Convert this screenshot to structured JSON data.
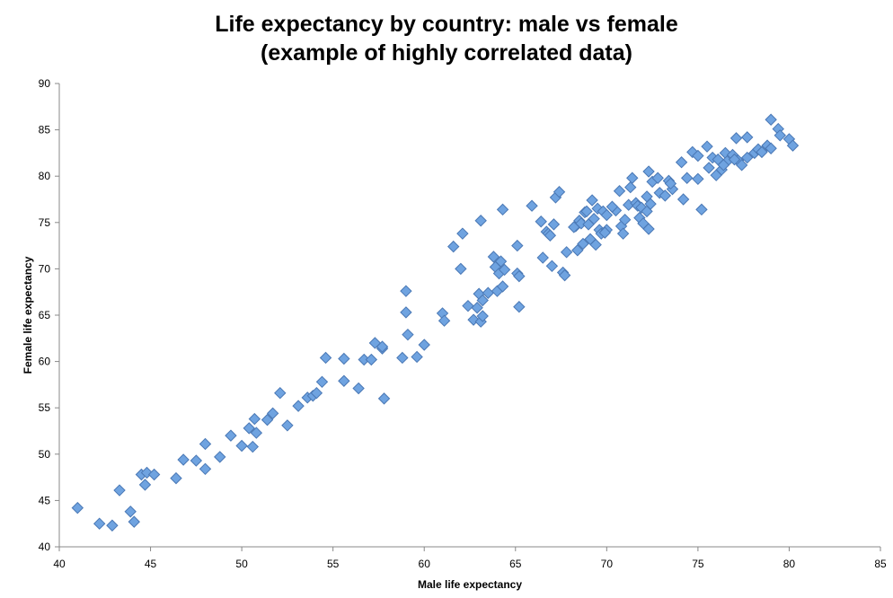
{
  "chart_data": {
    "type": "scatter",
    "title_line1": "Life expectancy by country: male vs female",
    "title_line2": "(example of highly correlated data)",
    "xlabel": "Male life expectancy",
    "ylabel": "Female life expectancy",
    "xlim": [
      40,
      85
    ],
    "ylim": [
      40,
      90
    ],
    "xticks": [
      "40",
      "45",
      "50",
      "55",
      "60",
      "65",
      "70",
      "75",
      "80",
      "85"
    ],
    "yticks": [
      "40",
      "45",
      "50",
      "55",
      "60",
      "65",
      "70",
      "75",
      "80",
      "85",
      "90"
    ],
    "grid": false,
    "legend": "none",
    "marker": "diamond",
    "marker_color": "#6fa3e0",
    "marker_edge_color": "#4a78b5",
    "points": [
      [
        41.0,
        44.2
      ],
      [
        42.2,
        42.5
      ],
      [
        42.9,
        42.3
      ],
      [
        43.3,
        46.1
      ],
      [
        43.9,
        43.8
      ],
      [
        44.1,
        42.7
      ],
      [
        44.5,
        47.8
      ],
      [
        44.7,
        46.7
      ],
      [
        44.8,
        48.0
      ],
      [
        45.2,
        47.8
      ],
      [
        46.4,
        47.4
      ],
      [
        46.8,
        49.4
      ],
      [
        47.5,
        49.3
      ],
      [
        48.0,
        51.1
      ],
      [
        48.0,
        48.4
      ],
      [
        48.8,
        49.7
      ],
      [
        49.4,
        52.0
      ],
      [
        50.0,
        50.9
      ],
      [
        50.4,
        52.8
      ],
      [
        50.6,
        50.8
      ],
      [
        50.7,
        53.8
      ],
      [
        50.8,
        52.3
      ],
      [
        51.4,
        53.7
      ],
      [
        51.7,
        54.4
      ],
      [
        52.1,
        56.6
      ],
      [
        52.5,
        53.1
      ],
      [
        53.1,
        55.2
      ],
      [
        53.6,
        56.1
      ],
      [
        53.9,
        56.3
      ],
      [
        54.1,
        56.6
      ],
      [
        54.4,
        57.8
      ],
      [
        54.6,
        60.4
      ],
      [
        55.6,
        60.3
      ],
      [
        55.6,
        57.9
      ],
      [
        56.4,
        57.1
      ],
      [
        56.7,
        60.2
      ],
      [
        57.1,
        60.2
      ],
      [
        57.3,
        62.0
      ],
      [
        57.7,
        61.4
      ],
      [
        57.7,
        61.6
      ],
      [
        57.8,
        56.0
      ],
      [
        58.8,
        60.4
      ],
      [
        59.0,
        65.3
      ],
      [
        59.0,
        67.6
      ],
      [
        59.1,
        62.9
      ],
      [
        59.6,
        60.5
      ],
      [
        60.0,
        61.8
      ],
      [
        61.0,
        65.2
      ],
      [
        61.1,
        64.4
      ],
      [
        61.6,
        72.4
      ],
      [
        62.0,
        70.0
      ],
      [
        62.1,
        73.8
      ],
      [
        62.4,
        66.0
      ],
      [
        62.7,
        64.5
      ],
      [
        62.9,
        65.8
      ],
      [
        63.0,
        67.3
      ],
      [
        63.1,
        75.2
      ],
      [
        63.1,
        64.3
      ],
      [
        63.2,
        64.9
      ],
      [
        63.2,
        66.6
      ],
      [
        63.5,
        67.4
      ],
      [
        63.8,
        71.3
      ],
      [
        63.9,
        70.2
      ],
      [
        64.0,
        67.6
      ],
      [
        64.1,
        69.5
      ],
      [
        64.2,
        70.8
      ],
      [
        64.3,
        76.4
      ],
      [
        64.3,
        68.1
      ],
      [
        64.4,
        69.9
      ],
      [
        65.1,
        72.5
      ],
      [
        65.1,
        69.5
      ],
      [
        65.2,
        69.2
      ],
      [
        65.2,
        65.9
      ],
      [
        65.9,
        76.8
      ],
      [
        66.4,
        75.1
      ],
      [
        66.5,
        71.2
      ],
      [
        66.7,
        74.0
      ],
      [
        66.8,
        73.8
      ],
      [
        66.9,
        73.6
      ],
      [
        67.0,
        70.3
      ],
      [
        67.1,
        74.8
      ],
      [
        67.2,
        77.7
      ],
      [
        67.4,
        78.3
      ],
      [
        67.6,
        69.6
      ],
      [
        67.7,
        69.3
      ],
      [
        67.8,
        71.8
      ],
      [
        68.3,
        74.6
      ],
      [
        68.4,
        72.0
      ],
      [
        68.5,
        75.2
      ],
      [
        68.6,
        74.9
      ],
      [
        68.7,
        72.7
      ],
      [
        68.8,
        76.1
      ],
      [
        68.9,
        76.2
      ],
      [
        69.0,
        74.8
      ],
      [
        69.1,
        73.2
      ],
      [
        69.2,
        77.4
      ],
      [
        69.3,
        75.4
      ],
      [
        69.4,
        72.6
      ],
      [
        69.5,
        76.5
      ],
      [
        69.6,
        74.2
      ],
      [
        69.7,
        73.8
      ],
      [
        69.8,
        76.2
      ],
      [
        70.0,
        75.8
      ],
      [
        70.0,
        74.2
      ],
      [
        70.5,
        76.3
      ],
      [
        70.7,
        78.4
      ],
      [
        70.8,
        74.6
      ],
      [
        70.9,
        73.8
      ],
      [
        71.0,
        75.3
      ],
      [
        71.2,
        76.9
      ],
      [
        71.3,
        78.8
      ],
      [
        71.4,
        79.8
      ],
      [
        71.6,
        77.1
      ],
      [
        71.7,
        76.8
      ],
      [
        71.8,
        75.5
      ],
      [
        71.9,
        76.6
      ],
      [
        72.0,
        74.9
      ],
      [
        72.2,
        76.2
      ],
      [
        72.3,
        80.5
      ],
      [
        72.3,
        74.3
      ],
      [
        72.4,
        77.0
      ],
      [
        72.5,
        79.4
      ],
      [
        72.8,
        79.8
      ],
      [
        72.9,
        78.2
      ],
      [
        73.2,
        77.9
      ],
      [
        73.4,
        79.5
      ],
      [
        73.6,
        78.6
      ],
      [
        74.1,
        81.5
      ],
      [
        74.4,
        79.8
      ],
      [
        74.2,
        77.5
      ],
      [
        74.7,
        82.6
      ],
      [
        75.0,
        82.2
      ],
      [
        75.0,
        79.7
      ],
      [
        75.2,
        76.4
      ],
      [
        75.5,
        83.2
      ],
      [
        75.6,
        80.9
      ],
      [
        75.8,
        82.0
      ],
      [
        76.0,
        80.1
      ],
      [
        76.1,
        81.8
      ],
      [
        76.3,
        80.7
      ],
      [
        76.5,
        82.5
      ],
      [
        76.6,
        81.6
      ],
      [
        76.9,
        82.3
      ],
      [
        77.1,
        84.1
      ],
      [
        77.2,
        81.7
      ],
      [
        77.4,
        81.2
      ],
      [
        77.7,
        84.2
      ],
      [
        77.7,
        82.0
      ],
      [
        78.1,
        82.5
      ],
      [
        78.3,
        82.9
      ],
      [
        78.5,
        82.6
      ],
      [
        78.8,
        83.3
      ],
      [
        79.0,
        86.1
      ],
      [
        79.0,
        83.0
      ],
      [
        79.4,
        85.1
      ],
      [
        79.5,
        84.4
      ],
      [
        80.0,
        84.0
      ],
      [
        80.2,
        83.3
      ],
      [
        76.4,
        81.2
      ],
      [
        77.0,
        81.8
      ],
      [
        72.2,
        77.8
      ],
      [
        73.5,
        79.2
      ],
      [
        70.3,
        76.7
      ],
      [
        69.9,
        73.9
      ],
      [
        68.2,
        74.5
      ]
    ]
  }
}
